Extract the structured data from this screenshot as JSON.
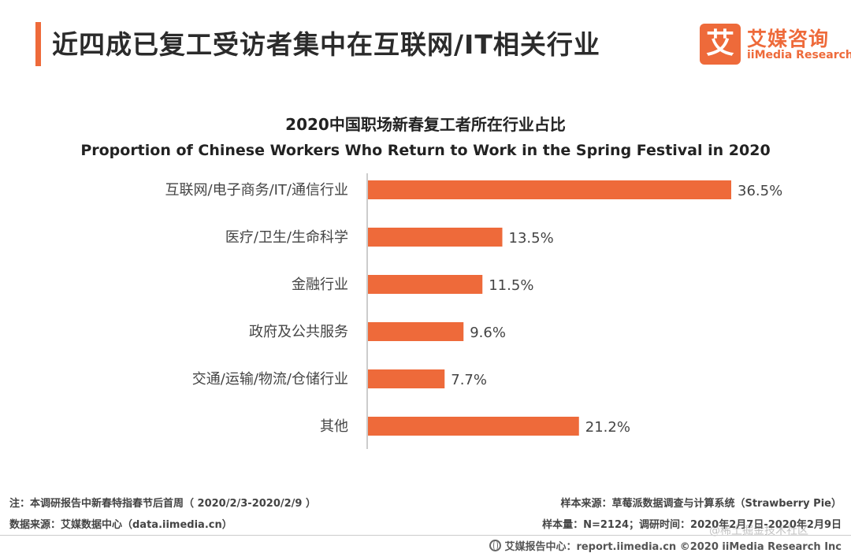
{
  "header": {
    "title": "近四成已复工受访者集中在互联网/IT相关行业"
  },
  "logo": {
    "mark": "艾",
    "name_cn": "艾媒咨询",
    "name_en": "iiMedia Research"
  },
  "chart_data": {
    "type": "bar",
    "orientation": "horizontal",
    "title": "2020中国职场新春复工者所在行业占比",
    "subtitle": "Proportion of Chinese Workers Who Return to Work in the Spring Festival in 2020",
    "categories": [
      "互联网/电子商务/IT/通信行业",
      "医疗/卫生/生命科学",
      "金融行业",
      "政府及公共服务",
      "交通/运输/物流/仓储行业",
      "其他"
    ],
    "values": [
      36.5,
      13.5,
      11.5,
      9.6,
      7.7,
      21.2
    ],
    "value_labels": [
      "36.5%",
      "13.5%",
      "11.5%",
      "9.6%",
      "7.7%",
      "21.2%"
    ],
    "unit": "%",
    "xlim": [
      0,
      36.5
    ],
    "grid": false,
    "bar_color": "#ee6a3a"
  },
  "footer": {
    "note": "注：本调研报告中新春特指春节后首周（ 2020/2/3-2020/2/9 ）",
    "data_source": "数据来源：艾媒数据中心（data.iimedia.cn）",
    "sample_source": "样本来源：草莓派数据调查与计算系统（Strawberry   Pie）",
    "sample_size": "样本量：N=2124；调研时间：2020年2月7日-2020年2月9日",
    "report_center": "艾媒报告中心：report.iimedia.cn  ©2020  iiMedia Research  Inc",
    "watermark": "@稀土掘金技术社区"
  },
  "colors": {
    "accent": "#ee6a3a"
  }
}
